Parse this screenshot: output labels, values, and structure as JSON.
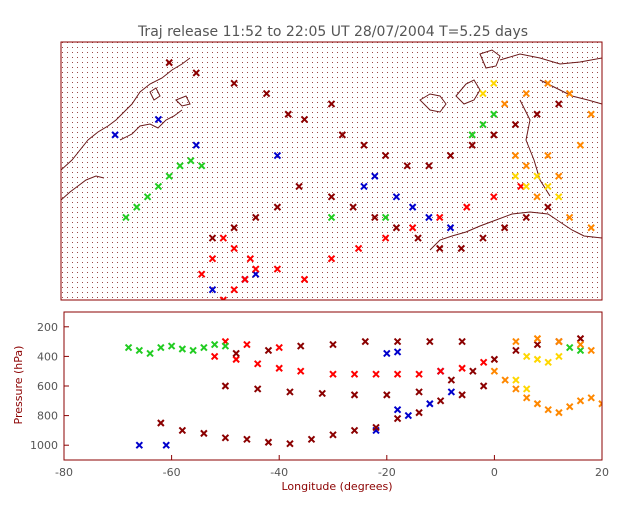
{
  "chart_data": [
    {
      "type": "scatter",
      "title": "Traj release 11:52 to 22:05 UT 28/07/2004     T=5.25 days",
      "panel": "map",
      "xlim": [
        -80,
        20
      ],
      "ylim": [
        20,
        70
      ],
      "marker": "x",
      "series": [
        {
          "color": "#0000cc",
          "points": [
            [
              -62,
              55
            ],
            [
              -70,
              52
            ],
            [
              -55,
              50
            ],
            [
              -40,
              48
            ],
            [
              -22,
              44
            ],
            [
              -18,
              40
            ],
            [
              -15,
              38
            ],
            [
              -12,
              36
            ],
            [
              -8,
              34
            ],
            [
              -24,
              42
            ],
            [
              -44,
              25
            ],
            [
              -52,
              22
            ],
            [
              -46,
              24
            ]
          ]
        },
        {
          "color": "#ff0000",
          "points": [
            [
              -50,
              32
            ],
            [
              -48,
              30
            ],
            [
              -45,
              28
            ],
            [
              -44,
              26
            ],
            [
              -46,
              24
            ],
            [
              -48,
              22
            ],
            [
              -50,
              20
            ],
            [
              -54,
              25
            ],
            [
              -52,
              28
            ],
            [
              -40,
              26
            ],
            [
              -35,
              24
            ],
            [
              -30,
              28
            ],
            [
              -25,
              30
            ],
            [
              -20,
              32
            ],
            [
              -15,
              34
            ],
            [
              -10,
              36
            ],
            [
              -5,
              38
            ],
            [
              0,
              40
            ],
            [
              5,
              42
            ]
          ]
        },
        {
          "color": "#8b0000",
          "points": [
            [
              -60,
              66
            ],
            [
              -55,
              64
            ],
            [
              -48,
              62
            ],
            [
              -42,
              60
            ],
            [
              -38,
              56
            ],
            [
              -35,
              55
            ],
            [
              -30,
              58
            ],
            [
              -28,
              52
            ],
            [
              -24,
              50
            ],
            [
              -20,
              48
            ],
            [
              -16,
              46
            ],
            [
              -12,
              46
            ],
            [
              -8,
              48
            ],
            [
              -4,
              50
            ],
            [
              0,
              52
            ],
            [
              4,
              54
            ],
            [
              8,
              56
            ],
            [
              12,
              58
            ],
            [
              -36,
              42
            ],
            [
              -30,
              40
            ],
            [
              -26,
              38
            ],
            [
              -22,
              36
            ],
            [
              -18,
              34
            ],
            [
              -14,
              32
            ],
            [
              -10,
              30
            ],
            [
              -6,
              30
            ],
            [
              -2,
              32
            ],
            [
              2,
              34
            ],
            [
              6,
              36
            ],
            [
              10,
              38
            ],
            [
              -40,
              38
            ],
            [
              -44,
              36
            ],
            [
              -48,
              34
            ],
            [
              -52,
              32
            ]
          ]
        },
        {
          "color": "#22cc22",
          "points": [
            [
              -68,
              36
            ],
            [
              -66,
              38
            ],
            [
              -64,
              40
            ],
            [
              -62,
              42
            ],
            [
              -60,
              44
            ],
            [
              -58,
              46
            ],
            [
              -56,
              47
            ],
            [
              -54,
              46
            ],
            [
              -4,
              52
            ],
            [
              -2,
              54
            ],
            [
              0,
              56
            ],
            [
              -20,
              36
            ],
            [
              -30,
              36
            ]
          ]
        },
        {
          "color": "#ff8800",
          "points": [
            [
              2,
              58
            ],
            [
              6,
              60
            ],
            [
              10,
              62
            ],
            [
              14,
              60
            ],
            [
              18,
              56
            ],
            [
              16,
              50
            ],
            [
              12,
              44
            ],
            [
              8,
              40
            ],
            [
              14,
              36
            ],
            [
              18,
              34
            ],
            [
              4,
              48
            ],
            [
              6,
              46
            ],
            [
              10,
              48
            ]
          ]
        },
        {
          "color": "#ffd700",
          "points": [
            [
              8,
              44
            ],
            [
              10,
              42
            ],
            [
              12,
              40
            ],
            [
              6,
              42
            ],
            [
              4,
              44
            ],
            [
              -2,
              60
            ],
            [
              0,
              62
            ]
          ]
        }
      ]
    },
    {
      "type": "scatter",
      "panel": "pressure",
      "xlabel": "Longitude  (degrees)",
      "ylabel": "Pressure  (hPa)",
      "xlim": [
        -80,
        20
      ],
      "ylim": [
        1100,
        100
      ],
      "xticks": [
        -80,
        -60,
        -40,
        -20,
        0,
        20
      ],
      "yticks": [
        200,
        400,
        600,
        800,
        1000
      ],
      "marker": "x",
      "series": [
        {
          "color": "#0000cc",
          "points": [
            [
              -66,
              1000
            ],
            [
              -61,
              1000
            ],
            [
              -22,
              900
            ],
            [
              -18,
              760
            ],
            [
              -16,
              800
            ],
            [
              -12,
              720
            ],
            [
              -8,
              640
            ],
            [
              -20,
              380
            ],
            [
              -18,
              370
            ],
            [
              -10,
              500
            ]
          ]
        },
        {
          "color": "#ff0000",
          "points": [
            [
              -52,
              400
            ],
            [
              -48,
              420
            ],
            [
              -44,
              450
            ],
            [
              -40,
              480
            ],
            [
              -36,
              500
            ],
            [
              -30,
              520
            ],
            [
              -26,
              520
            ],
            [
              -22,
              520
            ],
            [
              -18,
              520
            ],
            [
              -14,
              520
            ],
            [
              -10,
              500
            ],
            [
              -6,
              480
            ],
            [
              -2,
              440
            ],
            [
              -50,
              300
            ],
            [
              -46,
              320
            ],
            [
              -40,
              340
            ]
          ]
        },
        {
          "color": "#8b0000",
          "points": [
            [
              -62,
              850
            ],
            [
              -58,
              900
            ],
            [
              -54,
              920
            ],
            [
              -50,
              950
            ],
            [
              -46,
              960
            ],
            [
              -42,
              980
            ],
            [
              -38,
              990
            ],
            [
              -34,
              960
            ],
            [
              -30,
              930
            ],
            [
              -26,
              900
            ],
            [
              -22,
              880
            ],
            [
              -18,
              820
            ],
            [
              -14,
              780
            ],
            [
              -10,
              700
            ],
            [
              -6,
              660
            ],
            [
              -2,
              600
            ],
            [
              -50,
              600
            ],
            [
              -44,
              620
            ],
            [
              -38,
              640
            ],
            [
              -32,
              650
            ],
            [
              -26,
              660
            ],
            [
              -20,
              660
            ],
            [
              -14,
              640
            ],
            [
              -8,
              560
            ],
            [
              -4,
              500
            ],
            [
              0,
              420
            ],
            [
              4,
              360
            ],
            [
              8,
              320
            ],
            [
              12,
              300
            ],
            [
              16,
              280
            ],
            [
              -48,
              380
            ],
            [
              -42,
              360
            ],
            [
              -36,
              330
            ],
            [
              -30,
              320
            ],
            [
              -24,
              300
            ],
            [
              -18,
              300
            ],
            [
              -12,
              300
            ],
            [
              -6,
              300
            ]
          ]
        },
        {
          "color": "#22cc22",
          "points": [
            [
              -68,
              340
            ],
            [
              -66,
              360
            ],
            [
              -64,
              380
            ],
            [
              -62,
              340
            ],
            [
              -60,
              330
            ],
            [
              -58,
              350
            ],
            [
              -56,
              360
            ],
            [
              -54,
              340
            ],
            [
              -52,
              320
            ],
            [
              -50,
              330
            ],
            [
              14,
              340
            ],
            [
              16,
              360
            ]
          ]
        },
        {
          "color": "#ff8800",
          "points": [
            [
              0,
              500
            ],
            [
              2,
              560
            ],
            [
              4,
              620
            ],
            [
              6,
              680
            ],
            [
              8,
              720
            ],
            [
              10,
              760
            ],
            [
              12,
              780
            ],
            [
              14,
              740
            ],
            [
              16,
              700
            ],
            [
              18,
              680
            ],
            [
              20,
              720
            ],
            [
              4,
              300
            ],
            [
              8,
              280
            ],
            [
              12,
              300
            ],
            [
              16,
              320
            ],
            [
              18,
              360
            ]
          ]
        },
        {
          "color": "#ffd700",
          "points": [
            [
              6,
              400
            ],
            [
              8,
              420
            ],
            [
              10,
              440
            ],
            [
              12,
              400
            ],
            [
              4,
              560
            ],
            [
              6,
              620
            ]
          ]
        }
      ]
    }
  ]
}
